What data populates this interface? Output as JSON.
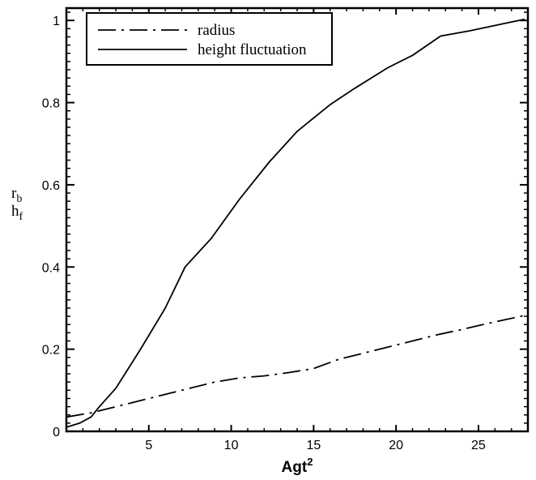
{
  "chart_data": {
    "type": "line",
    "xlabel": "Agt",
    "xlabel_sup": "2",
    "ylabel_lines": [
      {
        "base": "r",
        "sub": "b"
      },
      {
        "base": "h",
        "sub": "f"
      }
    ],
    "xlim": [
      0,
      28
    ],
    "ylim": [
      0,
      1.03
    ],
    "xticks": [
      5,
      10,
      15,
      20,
      25
    ],
    "yticks": [
      0,
      0.2,
      0.4,
      0.6,
      0.8,
      1
    ],
    "ytick_labels": [
      "0",
      "0.2",
      "0.4",
      "0.6",
      "0.8",
      "1"
    ],
    "legend_position": "top-left",
    "grid": false,
    "series": [
      {
        "name": "radius",
        "style": "dash-dot",
        "color": "#000000",
        "x": [
          0,
          1.5,
          3.0,
          4.5,
          6.0,
          7.5,
          9.0,
          10.5,
          12.0,
          13.5,
          15.0,
          16.5,
          18.0,
          19.5,
          21.0,
          22.5,
          24.0,
          25.5,
          27.0,
          27.8
        ],
        "y": [
          0.035,
          0.045,
          0.06,
          0.075,
          0.09,
          0.105,
          0.12,
          0.13,
          0.135,
          0.143,
          0.153,
          0.175,
          0.19,
          0.205,
          0.22,
          0.235,
          0.248,
          0.262,
          0.275,
          0.282
        ]
      },
      {
        "name": "height fluctuation",
        "style": "solid",
        "color": "#000000",
        "x": [
          0,
          0.8,
          1.5,
          2.0,
          3.0,
          4.5,
          6.0,
          7.2,
          8.8,
          10.5,
          12.3,
          14.0,
          16.0,
          17.5,
          19.5,
          21.0,
          22.7,
          24.5,
          26.5,
          27.8
        ],
        "y": [
          0.01,
          0.02,
          0.035,
          0.06,
          0.105,
          0.2,
          0.3,
          0.4,
          0.47,
          0.565,
          0.655,
          0.73,
          0.795,
          0.835,
          0.885,
          0.915,
          0.962,
          0.975,
          0.992,
          1.003
        ]
      }
    ]
  }
}
